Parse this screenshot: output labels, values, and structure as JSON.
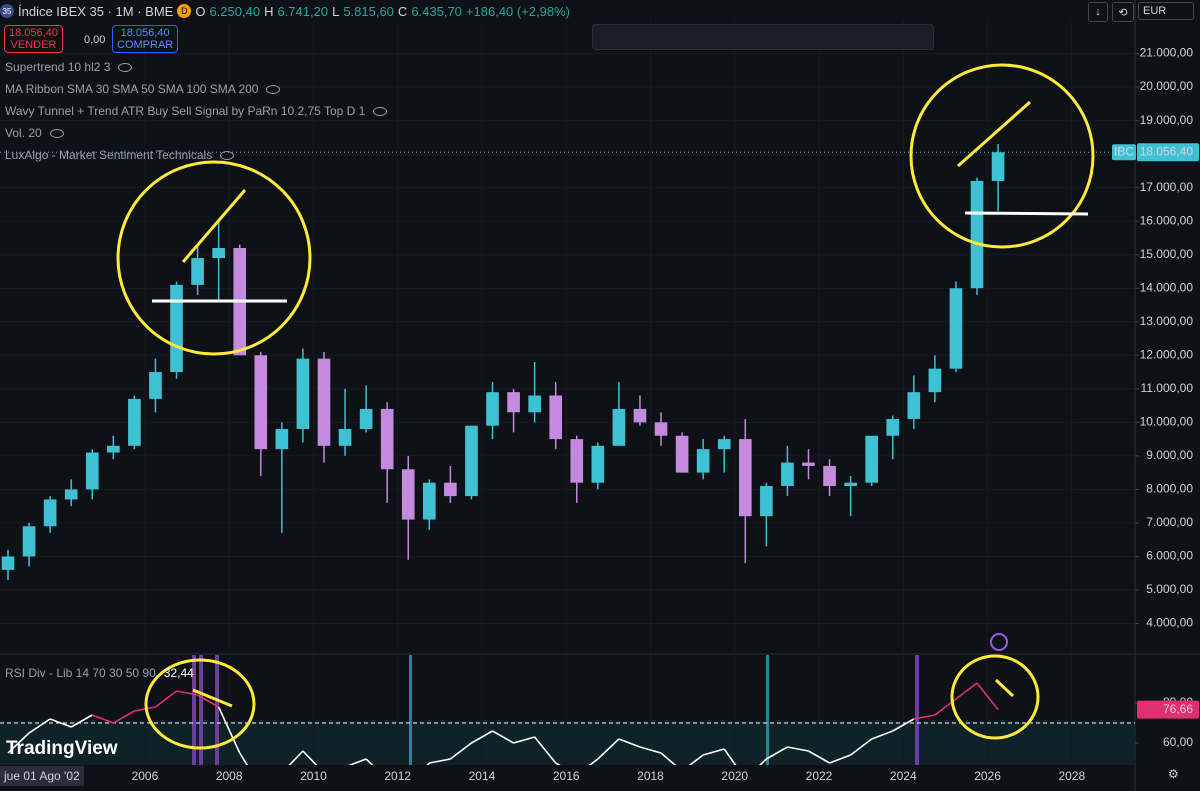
{
  "header": {
    "badge": "35",
    "symbol": "Índice IBEX 35 · 1M · BME",
    "status": "D",
    "o_label": "O",
    "o_value": "6.250,40",
    "h_label": "H",
    "h_value": "6.741,20",
    "l_label": "L",
    "l_value": "5.815,60",
    "c_label": "C",
    "c_value": "6.435,70",
    "change": "+186,40 (+2,98%)",
    "sell_price": "18.056,40",
    "sell_label": "VENDER",
    "spread": "0,00",
    "buy_price": "18.056,40",
    "buy_label": "COMPRAR",
    "currency": "EUR"
  },
  "indicators": [
    "Supertrend 10 hl2 3",
    "MA Ribbon SMA 30 SMA 50 SMA 100 SMA 200",
    "Wavy Tunnel + Trend ATR Buy Sell Signal by PaRn 10 2,75 Top D 1",
    "Vol. 20",
    "LuxAlgo - Market Sentiment Technicals"
  ],
  "footer": {
    "date": "jue 01 Ago '02",
    "brand": "TradingView"
  },
  "chart_data": [
    {
      "type": "candlestick",
      "x": [
        2002.75,
        2003.25,
        2003.75,
        2004.25,
        2004.75,
        2005.25,
        2005.75,
        2006.25,
        2006.75,
        2007.25,
        2007.75,
        2008.25,
        2008.75,
        2009.25,
        2009.75,
        2010.25,
        2010.75,
        2011.25,
        2011.75,
        2012.25,
        2012.75,
        2013.25,
        2013.75,
        2014.25,
        2014.75,
        2015.25,
        2015.75,
        2016.25,
        2016.75,
        2017.25,
        2017.75,
        2018.25,
        2018.75,
        2019.25,
        2019.75,
        2020.25,
        2020.75,
        2021.25,
        2021.75,
        2022.25,
        2022.75,
        2023.25,
        2023.75,
        2024.25,
        2024.75,
        2025.25,
        2025.75,
        2026.25
      ],
      "open": [
        5600,
        6000,
        6900,
        7700,
        8000,
        9100,
        9300,
        10700,
        11500,
        14100,
        14900,
        15200,
        12000,
        9200,
        9800,
        11900,
        9300,
        9800,
        10400,
        8600,
        7100,
        8200,
        7800,
        9900,
        10900,
        10300,
        10800,
        9500,
        8200,
        9300,
        10400,
        10000,
        9600,
        8500,
        9200,
        9500,
        7200,
        8100,
        8800,
        8700,
        8100,
        8200,
        9600,
        10100,
        10900,
        11600,
        14000,
        17200
      ],
      "high": [
        6200,
        7000,
        7800,
        8300,
        9200,
        9600,
        10800,
        11900,
        14200,
        15300,
        16000,
        15300,
        12100,
        10000,
        12200,
        12100,
        11000,
        11100,
        10600,
        9000,
        8300,
        8700,
        9900,
        11200,
        11000,
        11800,
        11200,
        9600,
        9400,
        11200,
        10800,
        10300,
        9700,
        9500,
        9600,
        10100,
        8200,
        9300,
        9200,
        8900,
        8400,
        9500,
        10200,
        11400,
        12000,
        14200,
        17300,
        18300
      ],
      "low": [
        5300,
        5700,
        6700,
        7500,
        7700,
        8900,
        9200,
        10300,
        11300,
        13800,
        13600,
        12100,
        8400,
        6700,
        9400,
        8800,
        9000,
        9700,
        7600,
        5900,
        6800,
        7600,
        7700,
        9500,
        9700,
        10000,
        9200,
        7600,
        8000,
        9300,
        9900,
        9300,
        8500,
        8300,
        8500,
        5800,
        6300,
        7800,
        8300,
        7800,
        7200,
        8100,
        8900,
        9800,
        10600,
        11500,
        13800,
        16300
      ],
      "close": [
        6000,
        6900,
        7700,
        8000,
        9100,
        9300,
        10700,
        11500,
        14100,
        14900,
        15200,
        12000,
        9200,
        9800,
        11900,
        9300,
        9800,
        10400,
        8600,
        7100,
        8200,
        7800,
        9900,
        10900,
        10300,
        10800,
        9500,
        8200,
        9300,
        10400,
        10000,
        9600,
        8500,
        9200,
        9500,
        7200,
        8100,
        8800,
        8700,
        8100,
        8200,
        9600,
        10100,
        10900,
        11600,
        14000,
        17200,
        18056.4
      ],
      "up_color": "#3fc1d4",
      "down_color": "#c48ade",
      "xlim": [
        2002.56,
        2029.5
      ],
      "xticks": [
        2006,
        2008,
        2010,
        2012,
        2014,
        2016,
        2018,
        2020,
        2022,
        2024,
        2026,
        2028
      ],
      "ylim": [
        3150,
        22000
      ],
      "yticks": [
        {
          "value": 4000,
          "label": "4.000,00"
        },
        {
          "value": 5000,
          "label": "5.000,00"
        },
        {
          "value": 6000,
          "label": "6.000,00"
        },
        {
          "value": 7000,
          "label": "7.000,00"
        },
        {
          "value": 8000,
          "label": "8.000,00"
        },
        {
          "value": 9000,
          "label": "9.000,00"
        },
        {
          "value": 10000,
          "label": "10.000,00"
        },
        {
          "value": 11000,
          "label": "11.000,00"
        },
        {
          "value": 12000,
          "label": "12.000,00"
        },
        {
          "value": 13000,
          "label": "13.000,00"
        },
        {
          "value": 14000,
          "label": "14.000,00"
        },
        {
          "value": 15000,
          "label": "15.000,00"
        },
        {
          "value": 16000,
          "label": "16.000,00"
        },
        {
          "value": 17000,
          "label": "17.000,00"
        },
        {
          "value": 18000,
          "label": "18.000,00"
        },
        {
          "value": 19000,
          "label": "19.000,00"
        },
        {
          "value": 20000,
          "label": "20.000,00"
        },
        {
          "value": 21000,
          "label": "21.000,00"
        }
      ],
      "last_price": {
        "value": 18056.4,
        "label": "18.056,40"
      },
      "price_tag": "IBC"
    },
    {
      "type": "line",
      "name": "RSI Div - Lib 14 70 30 50 90",
      "indicator_value": "32,44",
      "x": [
        2002.75,
        2003.25,
        2003.75,
        2004.25,
        2004.75,
        2005.25,
        2005.75,
        2006.25,
        2006.75,
        2007.25,
        2007.75,
        2008.25,
        2008.75,
        2009.25,
        2009.75,
        2010.25,
        2010.75,
        2011.25,
        2011.75,
        2012.25,
        2012.75,
        2013.25,
        2013.75,
        2014.25,
        2014.75,
        2015.25,
        2015.75,
        2016.25,
        2016.75,
        2017.25,
        2017.75,
        2018.25,
        2018.75,
        2019.25,
        2019.75,
        2020.25,
        2020.75,
        2021.25,
        2021.75,
        2022.25,
        2022.75,
        2023.25,
        2023.75,
        2024.25,
        2024.75,
        2025.25,
        2025.75,
        2026.25
      ],
      "values": [
        55,
        65,
        72,
        68,
        74,
        70,
        76,
        78,
        86,
        84,
        78,
        55,
        38,
        45,
        56,
        45,
        48,
        52,
        42,
        38,
        50,
        52,
        60,
        66,
        60,
        63,
        50,
        44,
        52,
        62,
        58,
        55,
        46,
        54,
        57,
        42,
        52,
        58,
        56,
        50,
        54,
        62,
        66,
        72,
        74,
        82,
        90,
        76.66
      ],
      "value_labels": [
        null,
        null,
        null,
        null,
        null,
        null,
        null,
        null,
        null,
        null,
        null,
        null,
        null,
        null,
        null,
        null,
        null,
        null,
        null,
        null,
        null,
        null,
        null,
        null,
        null,
        null,
        null,
        null,
        null,
        null,
        null,
        null,
        null,
        null,
        null,
        null,
        null,
        null,
        null,
        null,
        null,
        null,
        null,
        null,
        null,
        null,
        null,
        "76,66"
      ],
      "color": "#ffffff",
      "overbought_color": "#e0306f",
      "threshold": 70,
      "ylim": [
        49,
        104
      ],
      "yticks": [
        {
          "value": 60,
          "label": "60,00"
        },
        {
          "value": 80,
          "label": "80,00"
        }
      ]
    }
  ]
}
